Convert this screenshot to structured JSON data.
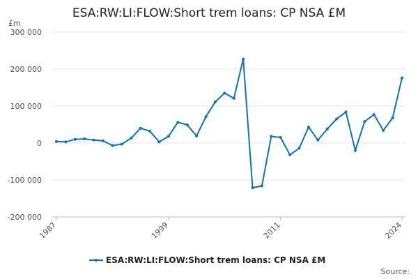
{
  "chart_data": {
    "type": "line",
    "title": "ESA:RW:LI:FLOW:Short trem loans: CP NSA £M",
    "y_unit": "£m",
    "source": "Source:",
    "x": [
      1987,
      1988,
      1989,
      1990,
      1991,
      1992,
      1993,
      1994,
      1995,
      1996,
      1997,
      1998,
      1999,
      2000,
      2001,
      2002,
      2003,
      2004,
      2005,
      2006,
      2007,
      2008,
      2009,
      2010,
      2011,
      2012,
      2013,
      2014,
      2015,
      2016,
      2017,
      2018,
      2019,
      2020,
      2021,
      2022,
      2023,
      2024
    ],
    "series": [
      {
        "name": "ESA:RW:LI:FLOW:Short trem loans: CP NSA £M",
        "color": "#0f73b2",
        "values": [
          4000,
          3000,
          10000,
          11000,
          8000,
          6000,
          -7000,
          -3000,
          13000,
          40000,
          32000,
          3000,
          18000,
          56000,
          49000,
          19000,
          71000,
          111000,
          135000,
          121000,
          227000,
          -121000,
          -116000,
          18000,
          15000,
          -32000,
          -14000,
          43000,
          8000,
          38000,
          65000,
          84000,
          -20000,
          58000,
          77000,
          34000,
          68000,
          176000
        ]
      }
    ],
    "xlim": [
      1987,
      2024
    ],
    "xticks": [
      1987,
      1999,
      2011,
      2024
    ],
    "ylim": [
      -200000,
      300000
    ],
    "yticks": [
      {
        "value": -200000,
        "label": "-200 000"
      },
      {
        "value": -100000,
        "label": "-100 000"
      },
      0,
      {
        "value": 100000,
        "label": "100 000"
      },
      {
        "value": 200000,
        "label": "200 000"
      },
      {
        "value": 300000,
        "label": "300 000"
      }
    ],
    "grid": true
  }
}
